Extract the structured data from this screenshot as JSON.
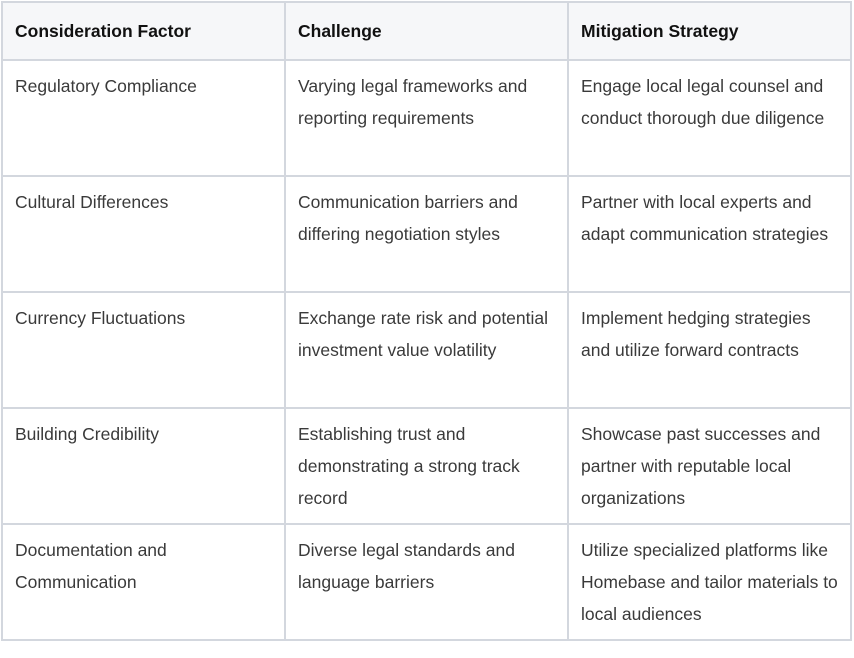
{
  "table": {
    "headers": [
      "Consideration Factor",
      "Challenge",
      "Mitigation Strategy"
    ],
    "rows": [
      [
        "Regulatory Compliance",
        "Varying legal frameworks and reporting requirements",
        "Engage local legal counsel and conduct thorough due diligence"
      ],
      [
        "Cultural Differences",
        "Communication barriers and differing negotiation styles",
        "Partner with local experts and adapt communication strategies"
      ],
      [
        "Currency Fluctuations",
        "Exchange rate risk and potential investment value volatility",
        "Implement hedging strategies and utilize forward contracts"
      ],
      [
        "Building Credibility",
        "Establishing trust and demonstrating a strong track record",
        "Showcase past successes and partner with reputable local organizations"
      ],
      [
        "Documentation and Communication",
        "Diverse legal standards and language barriers",
        "Utilize specialized platforms like Homebase and tailor materials to local audiences"
      ]
    ]
  }
}
